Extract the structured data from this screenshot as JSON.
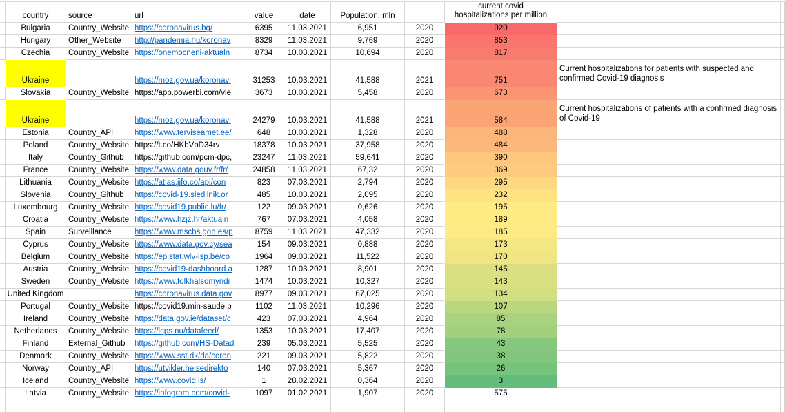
{
  "app": {
    "type": "spreadsheet-table",
    "gridline_color": "#d6d6d6",
    "link_color": "#0563C1",
    "highlight_yellow": "#FFFF00",
    "heat_scale": {
      "min_color": "#63BE7B",
      "mid_color": "#FFEB84",
      "max_color": "#F8696B",
      "min_value": 3,
      "mid_value": 189,
      "max_value": 920
    }
  },
  "header": {
    "country": "country",
    "source": "source",
    "url": "url",
    "value": "value",
    "date": "date",
    "population": "Population, mln",
    "year": "",
    "hospitalizations": "current covid\nhospitalizations per million",
    "notes": ""
  },
  "rows": [
    {
      "country": "Bulgaria",
      "hl": false,
      "source": "Country_Website",
      "url": "https://coronavirus.bg/",
      "link": true,
      "value": "6395",
      "date": "11.03.2021",
      "population": "6,951",
      "year": "2020",
      "hosp": "920",
      "heat": "#F8696B",
      "note": "",
      "tall": false
    },
    {
      "country": "Hungary",
      "hl": false,
      "source": "Other_Website",
      "url": "http://pandemia.hu/koronav",
      "link": true,
      "value": "8329",
      "date": "11.03.2021",
      "population": "9,769",
      "year": "2020",
      "hosp": "853",
      "heat": "#F9756D",
      "note": "",
      "tall": false
    },
    {
      "country": "Czechia",
      "hl": false,
      "source": "Country_Website",
      "url": "https://onemocneni-aktualn",
      "link": true,
      "value": "8734",
      "date": "10.03.2021",
      "population": "10,694",
      "year": "2020",
      "hosp": "817",
      "heat": "#F97B6E",
      "note": "",
      "tall": false
    },
    {
      "country": "Ukraine",
      "hl": true,
      "source": "",
      "url": "https://moz.gov.ua/koronavi",
      "link": true,
      "value": "31253",
      "date": "10.03.2021",
      "population": "41,588",
      "year": "2021",
      "hosp": "751",
      "heat": "#FA8771",
      "note": "Current hospitalizations for patients with suspected and confirmed Covid-19 diagnosis",
      "tall": true
    },
    {
      "country": "Slovakia",
      "hl": false,
      "source": "Country_Website",
      "url": "https://app.powerbi.com/vie",
      "link": false,
      "value": "3673",
      "date": "10.03.2021",
      "population": "5,458",
      "year": "2020",
      "hosp": "673",
      "heat": "#FA9573",
      "note": "",
      "tall": false
    },
    {
      "country": "Ukraine",
      "hl": true,
      "source": "",
      "url": "https://moz.gov.ua/koronavi",
      "link": true,
      "value": "24279",
      "date": "10.03.2021",
      "population": "41,588",
      "year": "2021",
      "hosp": "584",
      "heat": "#FBA576",
      "note": "Current hospitalizations of patients with a confirmed diagnosis of Covid-19",
      "tall": true
    },
    {
      "country": "Estonia",
      "hl": false,
      "source": "Country_API",
      "url": "https://www.terviseamet.ee/",
      "link": true,
      "value": "648",
      "date": "10.03.2021",
      "population": "1,328",
      "year": "2020",
      "hosp": "488",
      "heat": "#FCB67A",
      "note": "",
      "tall": false
    },
    {
      "country": "Poland",
      "hl": false,
      "source": "Country_Website",
      "url": "https://t.co/HKbVbD34rv",
      "link": false,
      "value": "18378",
      "date": "10.03.2021",
      "population": "37,958",
      "year": "2020",
      "hosp": "484",
      "heat": "#FCB77A",
      "note": "",
      "tall": false
    },
    {
      "country": "Italy",
      "hl": false,
      "source": "Country_Github",
      "url": "https://github.com/pcm-dpc,",
      "link": false,
      "value": "23247",
      "date": "11.03.2021",
      "population": "59,641",
      "year": "2020",
      "hosp": "390",
      "heat": "#FDC77D",
      "note": "",
      "tall": false
    },
    {
      "country": "France",
      "hl": false,
      "source": "Country_Website",
      "url": "https://www.data.gouv.fr/fr/",
      "link": true,
      "value": "24858",
      "date": "11.03.2021",
      "population": "67,32",
      "year": "2020",
      "hosp": "369",
      "heat": "#FDCB7E",
      "note": "",
      "tall": false
    },
    {
      "country": "Lithuania",
      "hl": false,
      "source": "Country_Website",
      "url": "https://atlas.jifo.co/api/con",
      "link": true,
      "value": "823",
      "date": "07.03.2021",
      "population": "2,794",
      "year": "2020",
      "hosp": "295",
      "heat": "#FED880",
      "note": "",
      "tall": false
    },
    {
      "country": "Slovenia",
      "hl": false,
      "source": "Country_Github",
      "url": "https://covid-19.sledilnik.or",
      "link": true,
      "value": "485",
      "date": "10.03.2021",
      "population": "2,095",
      "year": "2020",
      "hosp": "232",
      "heat": "#FFE383",
      "note": "",
      "tall": false
    },
    {
      "country": "Luxembourg",
      "hl": false,
      "source": "Country_Website",
      "url": "https://covid19.public.lu/fr/",
      "link": true,
      "value": "122",
      "date": "09.03.2021",
      "population": "0,626",
      "year": "2020",
      "hosp": "195",
      "heat": "#FFEA84",
      "note": "",
      "tall": false
    },
    {
      "country": "Croatia",
      "hl": false,
      "source": "Country_Website",
      "url": "https://www.hzjz.hr/aktualn",
      "link": true,
      "value": "767",
      "date": "07.03.2021",
      "population": "4,058",
      "year": "2020",
      "hosp": "189",
      "heat": "#FFEB84",
      "note": "",
      "tall": false
    },
    {
      "country": "Spain",
      "hl": false,
      "source": "Surveillance",
      "url": "https://www.mscbs.gob.es/p",
      "link": true,
      "value": "8759",
      "date": "11.03.2021",
      "population": "47,332",
      "year": "2020",
      "hosp": "185",
      "heat": "#FCEA84",
      "note": "",
      "tall": false
    },
    {
      "country": "Cyprus",
      "hl": false,
      "source": "Country_Website",
      "url": "https://www.data.gov.cy/sea",
      "link": true,
      "value": "154",
      "date": "09.03.2021",
      "population": "0,888",
      "year": "2020",
      "hosp": "173",
      "heat": "#F2E783",
      "note": "",
      "tall": false
    },
    {
      "country": "Belgium",
      "hl": false,
      "source": "Country_Website",
      "url": "https://epistat.wiv-isp.be/co",
      "link": true,
      "value": "1964",
      "date": "09.03.2021",
      "population": "11,522",
      "year": "2020",
      "hosp": "170",
      "heat": "#EFE683",
      "note": "",
      "tall": false
    },
    {
      "country": "Austria",
      "hl": false,
      "source": "Country_Website",
      "url": "https://covid19-dashboard.a",
      "link": true,
      "value": "1287",
      "date": "10.03.2021",
      "population": "8,901",
      "year": "2020",
      "hosp": "145",
      "heat": "#DAE082",
      "note": "",
      "tall": false
    },
    {
      "country": "Sweden",
      "hl": false,
      "source": "Country_Website",
      "url": "https://www.folkhalsomyndi",
      "link": true,
      "value": "1474",
      "date": "10.03.2021",
      "population": "10,327",
      "year": "2020",
      "hosp": "143",
      "heat": "#D8E082",
      "note": "",
      "tall": false
    },
    {
      "country": "United Kingdom",
      "hl": false,
      "source": "",
      "url": "https://coronavirus.data.gov",
      "link": true,
      "value": "8977",
      "date": "09.03.2021",
      "population": "67,025",
      "year": "2020",
      "hosp": "134",
      "heat": "#D1DE81",
      "note": "",
      "tall": false
    },
    {
      "country": "Portugal",
      "hl": false,
      "source": "Country_Website",
      "url": "https://covid19.min-saude.p",
      "link": false,
      "value": "1102",
      "date": "11.03.2021",
      "population": "10,296",
      "year": "2020",
      "hosp": "107",
      "heat": "#BAD780",
      "note": "",
      "tall": false
    },
    {
      "country": "Ireland",
      "hl": false,
      "source": "Country_Website",
      "url": "https://data.gov.ie/dataset/c",
      "link": true,
      "value": "423",
      "date": "07.03.2021",
      "population": "4,964",
      "year": "2020",
      "hosp": "85",
      "heat": "#A8D27F",
      "note": "",
      "tall": false
    },
    {
      "country": "Netherlands",
      "hl": false,
      "source": "Country_Website",
      "url": "https://lcps.nu/datafeed/",
      "link": true,
      "value": "1353",
      "date": "10.03.2021",
      "population": "17,407",
      "year": "2020",
      "hosp": "78",
      "heat": "#A2D07F",
      "note": "",
      "tall": false
    },
    {
      "country": "Finland",
      "hl": false,
      "source": "External_Github",
      "url": "https://github.com/HS-Datad",
      "link": true,
      "value": "239",
      "date": "05.03.2021",
      "population": "5,525",
      "year": "2020",
      "hosp": "43",
      "heat": "#85C87D",
      "note": "",
      "tall": false
    },
    {
      "country": "Denmark",
      "hl": false,
      "source": "Country_Website",
      "url": "https://www.sst.dk/da/coron",
      "link": true,
      "value": "221",
      "date": "09.03.2021",
      "population": "5,822",
      "year": "2020",
      "hosp": "38",
      "heat": "#80C77D",
      "note": "",
      "tall": false
    },
    {
      "country": "Norway",
      "hl": false,
      "source": "Country_API",
      "url": "https://utvikler.helsedirekto",
      "link": true,
      "value": "140",
      "date": "07.03.2021",
      "population": "5,367",
      "year": "2020",
      "hosp": "26",
      "heat": "#76C47C",
      "note": "",
      "tall": false
    },
    {
      "country": "Iceland",
      "hl": false,
      "source": "Country_Website",
      "url": "https://www.covid.is/",
      "link": true,
      "value": "1",
      "date": "28.02.2021",
      "population": "0,364",
      "year": "2020",
      "hosp": "3",
      "heat": "#63BE7B",
      "note": "",
      "tall": false
    },
    {
      "country": "Latvia",
      "hl": false,
      "source": "Country_Website",
      "url": "https://infogram.com/covid-",
      "link": true,
      "value": "1097",
      "date": "01.02.2021",
      "population": "1,907",
      "year": "2020",
      "hosp": "575",
      "heat": "",
      "note": "",
      "tall": false
    }
  ]
}
